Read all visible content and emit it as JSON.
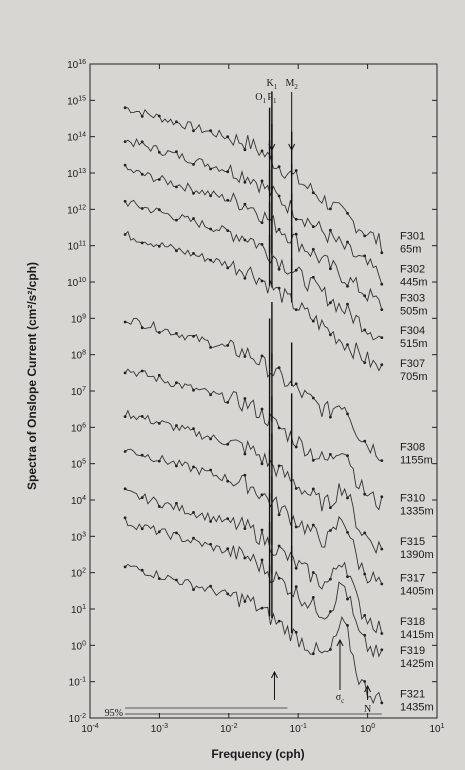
{
  "chart_data": {
    "type": "line",
    "xlabel": "Frequency (cph)",
    "ylabel": "Spectra of Onslope Current (cm²/s²/cph)",
    "xscale": "log",
    "yscale": "log",
    "xlim": [
      0.0001,
      10
    ],
    "ylim": [
      0.01,
      1e+16
    ],
    "x_ticks": [
      {
        "value": 0.0001,
        "base": "10",
        "exp": "-4"
      },
      {
        "value": 0.001,
        "base": "10",
        "exp": "-3"
      },
      {
        "value": 0.01,
        "base": "10",
        "exp": "-2"
      },
      {
        "value": 0.1,
        "base": "10",
        "exp": "-1"
      },
      {
        "value": 1,
        "base": "10",
        "exp": "0"
      },
      {
        "value": 10,
        "base": "10",
        "exp": "1"
      }
    ],
    "y_ticks": [
      {
        "value": 0.01,
        "base": "10",
        "exp": "-2"
      },
      {
        "value": 0.1,
        "base": "10",
        "exp": "-1"
      },
      {
        "value": 1,
        "base": "10",
        "exp": "0"
      },
      {
        "value": 10,
        "base": "10",
        "exp": "1"
      },
      {
        "value": 100,
        "base": "10",
        "exp": "2"
      },
      {
        "value": 1000,
        "base": "10",
        "exp": "3"
      },
      {
        "value": 10000,
        "base": "10",
        "exp": "4"
      },
      {
        "value": 100000,
        "base": "10",
        "exp": "5"
      },
      {
        "value": 1000000,
        "base": "10",
        "exp": "6"
      },
      {
        "value": 10000000,
        "base": "10",
        "exp": "7"
      },
      {
        "value": 100000000,
        "base": "10",
        "exp": "8"
      },
      {
        "value": 1000000000,
        "base": "10",
        "exp": "9"
      },
      {
        "value": 10000000000,
        "base": "10",
        "exp": "10"
      },
      {
        "value": 100000000000,
        "base": "10",
        "exp": "11"
      },
      {
        "value": 1000000000000,
        "base": "10",
        "exp": "12"
      },
      {
        "value": 10000000000000,
        "base": "10",
        "exp": "13"
      },
      {
        "value": 100000000000000,
        "base": "10",
        "exp": "14"
      },
      {
        "value": 1000000000000000,
        "base": "10",
        "exp": "15"
      },
      {
        "value": 10000000000000000,
        "base": "10",
        "exp": "16"
      }
    ],
    "annotations": {
      "o1": "O",
      "o1_sub": "1",
      "k1": "K",
      "k1_sub": "1",
      "p1": "P",
      "p1_sub": "1",
      "m2": "M",
      "m2_sub": "2",
      "sigma_c": "σ",
      "sigma_c_sub": "c",
      "n": "N",
      "ci": "95%"
    },
    "tidal_frequencies": {
      "o1": 0.0387,
      "k1": 0.0418,
      "m2": 0.0805
    },
    "inertial_frequency": 0.0455,
    "series": [
      {
        "name": "F301",
        "depth": "65m",
        "logA": 14.8,
        "peak": 0.0
      },
      {
        "name": "F302",
        "depth": "445m",
        "logA": 13.9,
        "peak": 0.0
      },
      {
        "name": "F303",
        "depth": "505m",
        "logA": 13.1,
        "peak": 0.0
      },
      {
        "name": "F304",
        "depth": "515m",
        "logA": 12.2,
        "peak": 0.0
      },
      {
        "name": "F307",
        "depth": "705m",
        "logA": 11.3,
        "peak": 0.0
      },
      {
        "name": "F308",
        "depth": "1155m",
        "logA": 9.0,
        "peak": 0.6
      },
      {
        "name": "F310",
        "depth": "1335m",
        "logA": 7.6,
        "peak": 0.8
      },
      {
        "name": "F315",
        "depth": "1390m",
        "logA": 6.4,
        "peak": 0.9
      },
      {
        "name": "F317",
        "depth": "1405m",
        "logA": 5.4,
        "peak": 1.0
      },
      {
        "name": "F318",
        "depth": "1415m",
        "logA": 4.2,
        "peak": 1.1
      },
      {
        "name": "F319",
        "depth": "1425m",
        "logA": 3.4,
        "peak": 1.2
      },
      {
        "name": "F321",
        "depth": "1435m",
        "logA": 2.2,
        "peak": 1.3
      }
    ]
  }
}
